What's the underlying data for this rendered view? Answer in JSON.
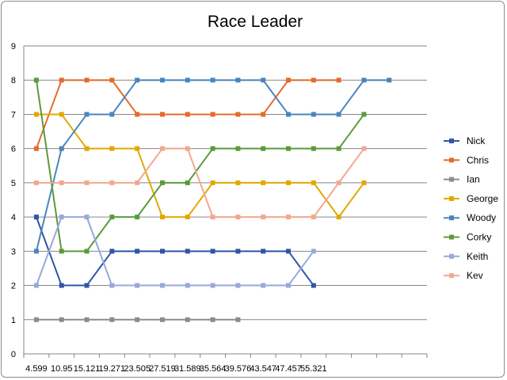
{
  "chart_data": {
    "type": "line",
    "title": "Race Leader",
    "xlabel": "",
    "ylabel": "",
    "ylim": [
      0,
      9
    ],
    "yticks": [
      "0",
      "1",
      "2",
      "3",
      "4",
      "5",
      "6",
      "7",
      "8",
      "9"
    ],
    "categories": [
      "4.599",
      "10.95",
      "15.121",
      "19.271",
      "23.505",
      "27.519",
      "31.589",
      "35.564",
      "39.576",
      "43.547",
      "47.457",
      "55.321",
      "",
      "",
      "",
      ""
    ],
    "grid": true,
    "legend": "right",
    "series": [
      {
        "name": "Nick",
        "color": "#2F55A4",
        "values": [
          4,
          2,
          2,
          3,
          3,
          3,
          3,
          3,
          3,
          3,
          3,
          2,
          null,
          null,
          null,
          null
        ]
      },
      {
        "name": "Chris",
        "color": "#E36C2D",
        "values": [
          6,
          8,
          8,
          8,
          7,
          7,
          7,
          7,
          7,
          7,
          8,
          8,
          8,
          null,
          null,
          null
        ]
      },
      {
        "name": "Ian",
        "color": "#8C8C8C",
        "values": [
          1,
          1,
          1,
          1,
          1,
          1,
          1,
          1,
          1,
          null,
          null,
          null,
          null,
          null,
          null,
          null
        ]
      },
      {
        "name": "George",
        "color": "#E3A800",
        "values": [
          7,
          7,
          6,
          6,
          6,
          4,
          4,
          5,
          5,
          5,
          5,
          5,
          4,
          5,
          null,
          null
        ]
      },
      {
        "name": "Woody",
        "color": "#4A86BE",
        "values": [
          3,
          6,
          7,
          7,
          8,
          8,
          8,
          8,
          8,
          8,
          7,
          7,
          7,
          8,
          8,
          null
        ]
      },
      {
        "name": "Corky",
        "color": "#5B9B3A",
        "values": [
          8,
          3,
          3,
          4,
          4,
          5,
          5,
          6,
          6,
          6,
          6,
          6,
          6,
          7,
          null,
          null
        ]
      },
      {
        "name": "Keith",
        "color": "#97A8DC",
        "values": [
          2,
          4,
          4,
          2,
          2,
          2,
          2,
          2,
          2,
          2,
          2,
          3,
          null,
          null,
          null,
          null
        ]
      },
      {
        "name": "Kev",
        "color": "#F1A88E",
        "values": [
          5,
          5,
          5,
          5,
          5,
          6,
          6,
          4,
          4,
          4,
          4,
          4,
          5,
          6,
          null,
          null
        ]
      }
    ]
  }
}
